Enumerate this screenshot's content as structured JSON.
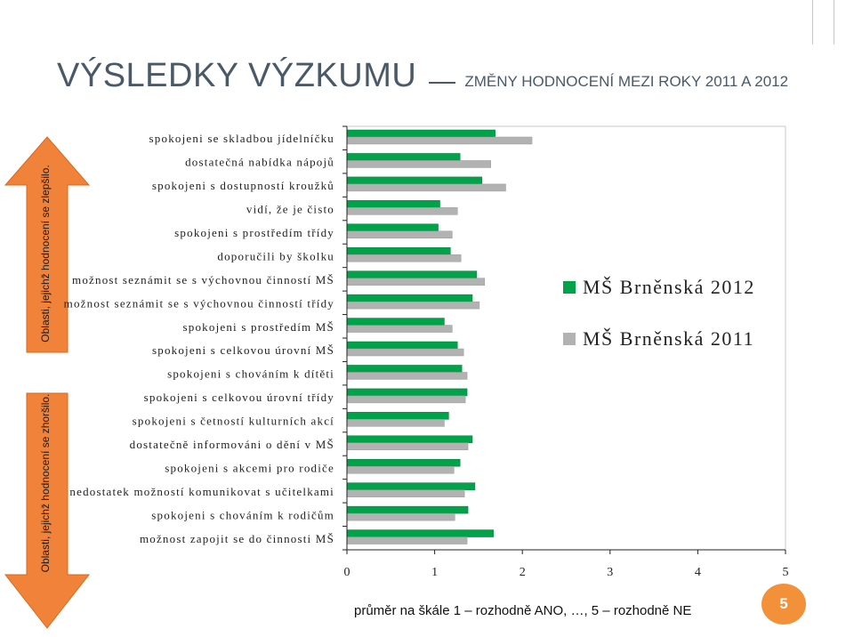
{
  "title": {
    "main": "VÝSLEDKY VÝZKUMU",
    "sub": "ZMĚNY HODNOCENÍ MEZI ROKY 2011 A 2012"
  },
  "arrows": {
    "improved": "Oblasti, jejichž hodnocení se zlepšilo.",
    "worsened": "Oblasti, jejichž hodnocení se zhoršilo."
  },
  "caption": "průměr na škále 1 – rozhodně ANO, …, 5 – rozhodně NE",
  "page_number": "5",
  "colors": {
    "series_2012": "#00a24a",
    "series_2011": "#b2b2b2",
    "arrow": "#f0823a",
    "accent": "#f2913a"
  },
  "chart_data": {
    "type": "bar",
    "orientation": "horizontal",
    "categories": [
      "spokojeni se skladbou jídelníčku",
      "dostatečná nabídka nápojů",
      "spokojeni s dostupností kroužků",
      "vidí, že je čisto",
      "spokojeni s prostředím třídy",
      "doporučili by školku",
      "možnost seznámit se s výchovnou činností MŠ",
      "možnost seznámit se s výchovnou činností třídy",
      "spokojeni s prostředím MŠ",
      "spokojeni s celkovou úrovní MŠ",
      "spokojeni s chováním k dítěti",
      "spokojeni s celkovou úrovní třídy",
      "spokojeni s četností kulturních akcí",
      "dostatečně informováni o dění v MŠ",
      "spokojeni s akcemi pro rodiče",
      "nedostatek možností komunikovat s učitelkami",
      "spokojeni s chováním k rodičům",
      "možnost zapojit se do činnosti MŠ"
    ],
    "series": [
      {
        "name": "MŠ Brněnská 2012",
        "values": [
          1.69,
          1.29,
          1.54,
          1.06,
          1.04,
          1.18,
          1.48,
          1.43,
          1.11,
          1.26,
          1.31,
          1.37,
          1.16,
          1.43,
          1.29,
          1.46,
          1.38,
          1.67
        ]
      },
      {
        "name": "MŠ Brněnská 2011",
        "values": [
          2.11,
          1.64,
          1.81,
          1.26,
          1.2,
          1.3,
          1.57,
          1.51,
          1.2,
          1.33,
          1.37,
          1.35,
          1.11,
          1.38,
          1.22,
          1.34,
          1.23,
          1.37
        ]
      }
    ],
    "xlim": [
      0,
      5
    ],
    "xticks": [
      "0",
      "1",
      "2",
      "3",
      "4",
      "5"
    ],
    "legend_placement": "right"
  }
}
